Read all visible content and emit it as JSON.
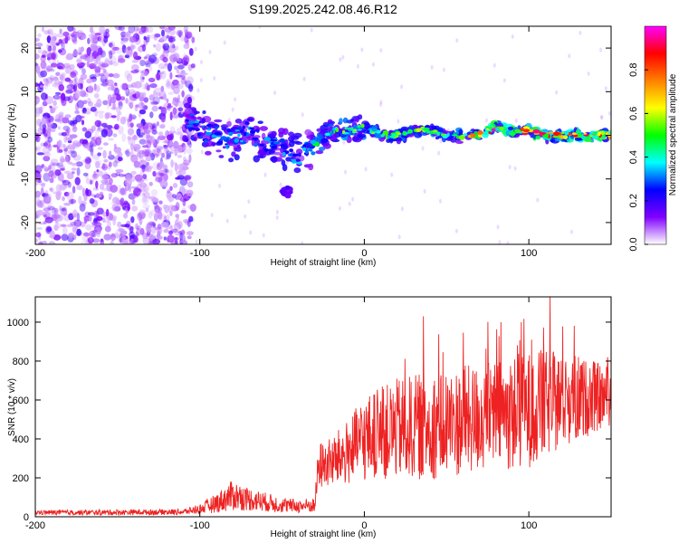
{
  "title": "S199.2025.242.08.46.R12",
  "chart_data": [
    {
      "type": "heatmap",
      "name": "spectrogram",
      "xlabel": "Height of straight line (km)",
      "ylabel": "Frequency (Hz)",
      "xlim": [
        -200,
        150
      ],
      "ylim": [
        -25,
        25
      ],
      "xticks": [
        -200,
        -100,
        0,
        100
      ],
      "xtick_labels": [
        "-200",
        "-100",
        "0",
        "100"
      ],
      "yticks": [
        -20,
        -10,
        0,
        10,
        20
      ],
      "ytick_labels": [
        "-20",
        "-10",
        "0",
        "10",
        "20"
      ],
      "grid": false,
      "noise_region_x": [
        -200,
        -108
      ],
      "signal_track": [
        {
          "x": -108,
          "y": 5
        },
        {
          "x": -100,
          "y": 1
        },
        {
          "x": -90,
          "y": 0
        },
        {
          "x": -80,
          "y": -1
        },
        {
          "x": -70,
          "y": 1
        },
        {
          "x": -60,
          "y": -2
        },
        {
          "x": -50,
          "y": -3
        },
        {
          "x": -40,
          "y": -5
        },
        {
          "x": -30,
          "y": -2
        },
        {
          "x": -20,
          "y": 1
        },
        {
          "x": -10,
          "y": 1
        },
        {
          "x": 0,
          "y": 2
        },
        {
          "x": 10,
          "y": 0
        },
        {
          "x": 20,
          "y": 0
        },
        {
          "x": 30,
          "y": 1
        },
        {
          "x": 40,
          "y": 1
        },
        {
          "x": 50,
          "y": 0
        },
        {
          "x": 60,
          "y": 0
        },
        {
          "x": 70,
          "y": 0
        },
        {
          "x": 80,
          "y": 2
        },
        {
          "x": 90,
          "y": 1
        },
        {
          "x": 100,
          "y": 1
        },
        {
          "x": 110,
          "y": 0
        },
        {
          "x": 120,
          "y": 0
        },
        {
          "x": 130,
          "y": 0
        },
        {
          "x": 150,
          "y": 0
        }
      ],
      "side_blob": {
        "x": -47,
        "y": -13
      },
      "colorbar": {
        "label": "Normalized spectral amplitude",
        "range": [
          0,
          1
        ],
        "ticks": [
          0.0,
          0.2,
          0.4,
          0.6,
          0.8
        ],
        "tick_labels": [
          "0.0",
          "0.2",
          "0.4",
          "0.6",
          "0.8"
        ],
        "colors": [
          "#ffffff",
          "#8000ff",
          "#0000ff",
          "#00ffff",
          "#00ff00",
          "#ffff00",
          "#ff8000",
          "#ff0000",
          "#ff00ff"
        ]
      }
    },
    {
      "type": "line",
      "name": "snr",
      "xlabel": "Height of straight line (km)",
      "ylabel": "SNR (10 * v/v)",
      "xlim": [
        -200,
        150
      ],
      "ylim": [
        0,
        1130
      ],
      "xticks": [
        -200,
        -100,
        0,
        100
      ],
      "xtick_labels": [
        "-200",
        "-100",
        "0",
        "100"
      ],
      "yticks": [
        0,
        200,
        400,
        600,
        800,
        1000
      ],
      "ytick_labels": [
        "0",
        "200",
        "400",
        "600",
        "800",
        "1000"
      ],
      "grid": false,
      "color": "#ee2222",
      "envelope": [
        {
          "x": -200,
          "mean": 22,
          "spread": 12
        },
        {
          "x": -160,
          "mean": 22,
          "spread": 14
        },
        {
          "x": -110,
          "mean": 25,
          "spread": 15
        },
        {
          "x": -100,
          "mean": 40,
          "spread": 25
        },
        {
          "x": -90,
          "mean": 70,
          "spread": 50
        },
        {
          "x": -80,
          "mean": 110,
          "spread": 80
        },
        {
          "x": -70,
          "mean": 90,
          "spread": 60
        },
        {
          "x": -60,
          "mean": 75,
          "spread": 50
        },
        {
          "x": -50,
          "mean": 60,
          "spread": 40
        },
        {
          "x": -40,
          "mean": 55,
          "spread": 35
        },
        {
          "x": -30,
          "mean": 60,
          "spread": 40
        },
        {
          "x": -28,
          "mean": 260,
          "spread": 120
        },
        {
          "x": -20,
          "mean": 280,
          "spread": 130
        },
        {
          "x": -10,
          "mean": 330,
          "spread": 170
        },
        {
          "x": 0,
          "mean": 400,
          "spread": 220
        },
        {
          "x": 20,
          "mean": 450,
          "spread": 260
        },
        {
          "x": 40,
          "mean": 470,
          "spread": 280
        },
        {
          "x": 60,
          "mean": 490,
          "spread": 280
        },
        {
          "x": 80,
          "mean": 520,
          "spread": 290
        },
        {
          "x": 100,
          "mean": 550,
          "spread": 300
        },
        {
          "x": 120,
          "mean": 600,
          "spread": 250
        },
        {
          "x": 150,
          "mean": 620,
          "spread": 150
        }
      ],
      "peaks": [
        {
          "x": 36,
          "y": 1030
        },
        {
          "x": 83,
          "y": 1000
        },
        {
          "x": 113,
          "y": 1130
        },
        {
          "x": 148,
          "y": 820
        }
      ]
    }
  ]
}
